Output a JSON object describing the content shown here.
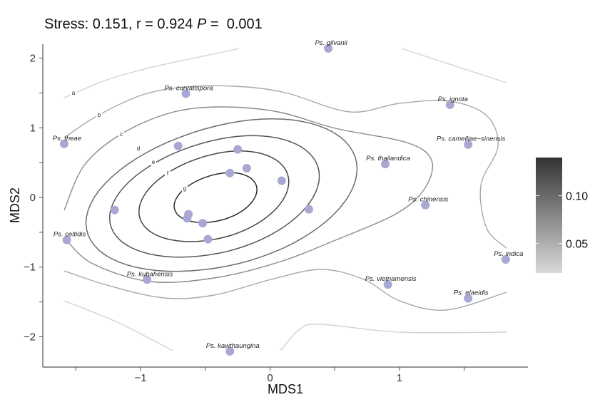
{
  "chart_data": {
    "type": "scatter",
    "title": {
      "prefix": "Stress: 0.151, r = 0.924 ",
      "p_symbol": "P",
      "suffix": " =  0.001"
    },
    "xlabel": "MDS1",
    "ylabel": "MDS2",
    "xlim": [
      -1.75,
      1.95
    ],
    "ylim": [
      -2.45,
      2.2
    ],
    "xticks": [
      -1,
      0,
      1
    ],
    "yticks": [
      -2,
      -1,
      0,
      1,
      2
    ],
    "xtick_labels": [
      "−1",
      "0",
      "1"
    ],
    "ytick_labels": [
      "−2",
      "−1",
      "0",
      "1",
      "2"
    ],
    "grid": false,
    "point_color": "#a9a8d3",
    "points": [
      {
        "label": "Ps. gilvanii",
        "x": 0.45,
        "y": 2.14
      },
      {
        "label": "Ps. curvatispora",
        "x": -0.65,
        "y": 1.49
      },
      {
        "label": "Ps. ignota",
        "x": 1.39,
        "y": 1.33
      },
      {
        "label": "Ps. theae",
        "x": -1.59,
        "y": 0.77
      },
      {
        "label": "Ps. camelliae−sinensis",
        "x": 1.53,
        "y": 0.76
      },
      {
        "label": "",
        "x": -0.71,
        "y": 0.74
      },
      {
        "label": "",
        "x": -0.25,
        "y": 0.69
      },
      {
        "label": "Ps. thailandica",
        "x": 0.89,
        "y": 0.48
      },
      {
        "label": "",
        "x": -0.18,
        "y": 0.42
      },
      {
        "label": "",
        "x": -0.31,
        "y": 0.35
      },
      {
        "label": "",
        "x": 0.09,
        "y": 0.24
      },
      {
        "label": "Ps. chinensis",
        "x": 1.2,
        "y": -0.11
      },
      {
        "label": "",
        "x": -1.2,
        "y": -0.18
      },
      {
        "label": "",
        "x": 0.3,
        "y": -0.17
      },
      {
        "label": "",
        "x": -0.63,
        "y": -0.24
      },
      {
        "label": "",
        "x": -0.64,
        "y": -0.3
      },
      {
        "label": "",
        "x": -0.52,
        "y": -0.37
      },
      {
        "label": "",
        "x": -0.48,
        "y": -0.6
      },
      {
        "label": "Ps. celtidis",
        "x": -1.57,
        "y": -0.61
      },
      {
        "label": "Ps. indica",
        "x": 1.82,
        "y": -0.89
      },
      {
        "label": "Ps. kubahensis",
        "x": -0.95,
        "y": -1.18
      },
      {
        "label": "Ps. vietnamensis",
        "x": 0.91,
        "y": -1.25
      },
      {
        "label": "Ps. elaeidis",
        "x": 1.53,
        "y": -1.45
      },
      {
        "label": "Ps. kawthaungina",
        "x": -0.31,
        "y": -2.21
      }
    ],
    "contour_labels": [
      "a",
      "b",
      "c",
      "d",
      "e",
      "f",
      "g"
    ],
    "colorbar": {
      "limits": [
        0.019,
        0.14
      ],
      "ticks": [
        0.05,
        0.1
      ],
      "tick_labels": [
        "0.05",
        "0.10"
      ],
      "color_low": "#d9d9d9",
      "color_high": "#333333"
    }
  }
}
